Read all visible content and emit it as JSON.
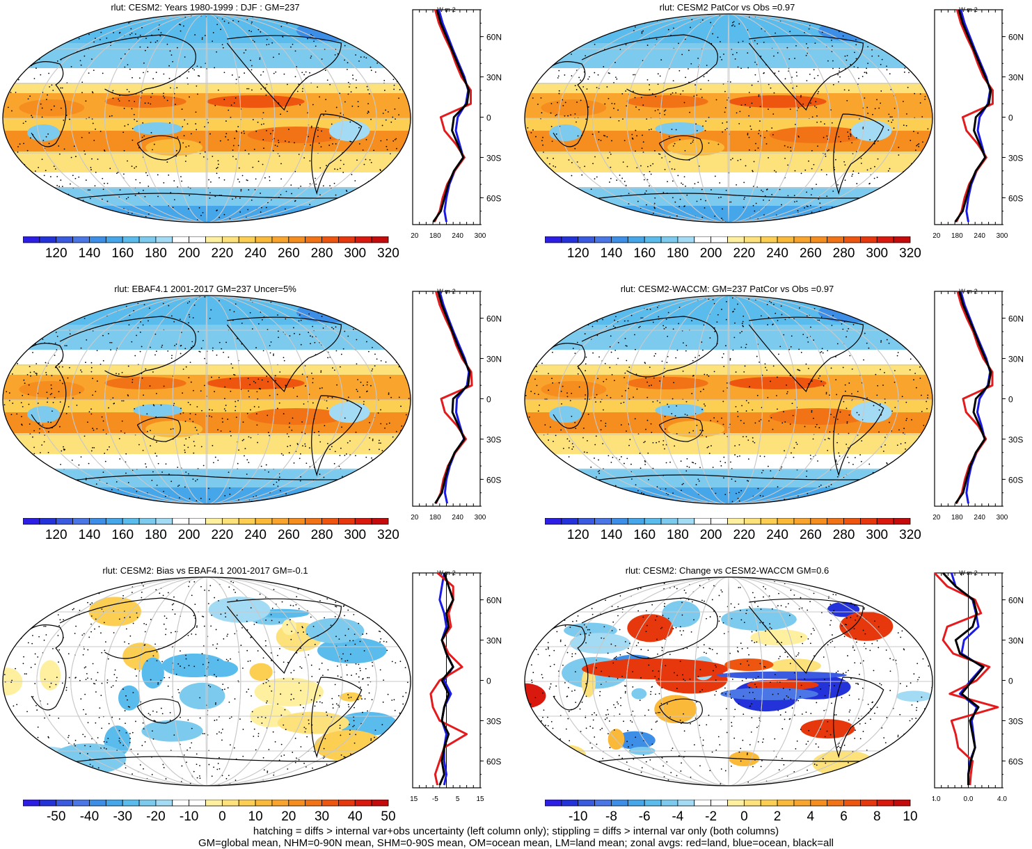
{
  "footer": {
    "line1": "hatching = diffs > internal var+obs uncertainty (left column only); stippling = diffs > internal var only (both columns)",
    "line2": "GM=global mean, NHM=0-90N mean, SHM=0-90S mean, OM=ocean mean, LM=land mean; zonal avgs: red=land, blue=ocean, black=all"
  },
  "colors": {
    "zonal_land": "#e41a1c",
    "zonal_ocean": "#1a1ae6",
    "zonal_all": "#000000",
    "scale": [
      "#2d1ee6",
      "#2433d9",
      "#3a5be0",
      "#4a76e6",
      "#3d8ee6",
      "#46a6ea",
      "#5abced",
      "#7ccbef",
      "#a3dbf4",
      "#ffffff",
      "#ffffff",
      "#fff0a0",
      "#fde17a",
      "#fccf52",
      "#fbb93a",
      "#f9a42d",
      "#f58d1f",
      "#f27315",
      "#ee560f",
      "#e6370d",
      "#d9190e",
      "#c40a0a"
    ]
  },
  "lat_labels": [
    "60N",
    "30N",
    "0",
    "30S",
    "60S"
  ],
  "units": "W m-2",
  "chart_data": [
    {
      "type": "heatmap",
      "id": "p1",
      "title": "rlut: CESM2: Years 1980-1999 : DJF : GM=237",
      "colorbar_ticks": [
        "120",
        "140",
        "160",
        "180",
        "200",
        "220",
        "240",
        "260",
        "280",
        "300",
        "320"
      ],
      "zonal_xticks": [
        "120",
        "180",
        "240",
        "300"
      ],
      "zonal_xlim": [
        120,
        300
      ],
      "zonal": {
        "lat": [
          -78,
          -70,
          -60,
          -50,
          -40,
          -30,
          -20,
          -10,
          0,
          10,
          20,
          30,
          40,
          50,
          60,
          70,
          80
        ],
        "all": [
          175,
          195,
          205,
          215,
          230,
          255,
          240,
          225,
          230,
          265,
          270,
          255,
          240,
          225,
          210,
          195,
          185
        ],
        "land": [
          178,
          192,
          200,
          212,
          232,
          258,
          235,
          205,
          195,
          275,
          275,
          250,
          235,
          222,
          205,
          190,
          180
        ],
        "ocean": [
          210,
          205,
          210,
          218,
          232,
          255,
          245,
          235,
          240,
          262,
          268,
          258,
          243,
          228,
          214,
          200,
          190
        ]
      }
    },
    {
      "type": "heatmap",
      "id": "p2",
      "title": "rlut: CESM2 PatCor vs Obs =0.97",
      "colorbar_ticks": [
        "120",
        "140",
        "160",
        "180",
        "200",
        "220",
        "240",
        "260",
        "280",
        "300",
        "320"
      ],
      "zonal_xticks": [
        "120",
        "180",
        "240",
        "300"
      ],
      "zonal_xlim": [
        120,
        300
      ],
      "zonal": {
        "lat": [
          -78,
          -70,
          -60,
          -50,
          -40,
          -30,
          -20,
          -10,
          0,
          10,
          20,
          30,
          40,
          50,
          60,
          70,
          80
        ],
        "all": [
          175,
          195,
          205,
          215,
          230,
          255,
          240,
          225,
          230,
          265,
          270,
          255,
          240,
          225,
          210,
          195,
          185
        ],
        "land": [
          178,
          192,
          200,
          212,
          232,
          258,
          235,
          205,
          195,
          275,
          275,
          250,
          235,
          222,
          205,
          190,
          180
        ],
        "ocean": [
          210,
          205,
          210,
          218,
          232,
          255,
          245,
          235,
          240,
          262,
          268,
          258,
          243,
          228,
          214,
          200,
          190
        ]
      }
    },
    {
      "type": "heatmap",
      "id": "p3",
      "title": "rlut: EBAF4.1 2001-2017 GM=237 Uncer=5%",
      "colorbar_ticks": [
        "120",
        "140",
        "160",
        "180",
        "200",
        "220",
        "240",
        "260",
        "280",
        "300",
        "320"
      ],
      "zonal_xticks": [
        "120",
        "180",
        "240",
        "300"
      ],
      "zonal_xlim": [
        120,
        300
      ],
      "zonal": {
        "lat": [
          -78,
          -70,
          -60,
          -50,
          -40,
          -30,
          -20,
          -10,
          0,
          10,
          20,
          30,
          40,
          50,
          60,
          70,
          80
        ],
        "all": [
          180,
          198,
          206,
          216,
          232,
          258,
          242,
          226,
          228,
          268,
          272,
          256,
          240,
          226,
          212,
          198,
          188
        ],
        "land": [
          182,
          195,
          202,
          214,
          234,
          262,
          238,
          206,
          196,
          278,
          276,
          252,
          236,
          224,
          207,
          192,
          182
        ],
        "ocean": [
          212,
          206,
          210,
          219,
          233,
          257,
          246,
          236,
          238,
          265,
          270,
          259,
          244,
          229,
          215,
          202,
          192
        ]
      }
    },
    {
      "type": "heatmap",
      "id": "p4",
      "title": "rlut: CESM2-WACCM: GM=237 PatCor vs Obs =0.97",
      "colorbar_ticks": [
        "120",
        "140",
        "160",
        "180",
        "200",
        "220",
        "240",
        "260",
        "280",
        "300",
        "320"
      ],
      "zonal_xticks": [
        "120",
        "180",
        "240",
        "300"
      ],
      "zonal_xlim": [
        120,
        300
      ],
      "zonal": {
        "lat": [
          -78,
          -70,
          -60,
          -50,
          -40,
          -30,
          -20,
          -10,
          0,
          10,
          20,
          30,
          40,
          50,
          60,
          70,
          80
        ],
        "all": [
          176,
          196,
          205,
          215,
          230,
          254,
          240,
          224,
          230,
          264,
          270,
          255,
          240,
          226,
          211,
          196,
          186
        ],
        "land": [
          178,
          193,
          201,
          212,
          232,
          257,
          236,
          204,
          196,
          274,
          274,
          250,
          235,
          223,
          206,
          191,
          181
        ],
        "ocean": [
          210,
          205,
          210,
          218,
          232,
          254,
          245,
          234,
          240,
          262,
          268,
          258,
          243,
          228,
          214,
          200,
          190
        ]
      }
    },
    {
      "type": "heatmap",
      "id": "p5",
      "title": "rlut: CESM2: Bias vs EBAF4.1 2001-2017 GM=-0.1",
      "colorbar_ticks": [
        "-50",
        "-40",
        "-30",
        "-20",
        "-10",
        "0",
        "10",
        "20",
        "30",
        "40",
        "50"
      ],
      "zonal_xticks": [
        "-15",
        "-5",
        "5",
        "15"
      ],
      "zonal_xlim": [
        -15,
        15
      ],
      "zonal_zero_line": true,
      "zonal": {
        "lat": [
          -78,
          -70,
          -60,
          -50,
          -40,
          -30,
          -20,
          -10,
          0,
          10,
          20,
          30,
          40,
          50,
          60,
          70,
          80
        ],
        "all": [
          -3,
          -1,
          -2,
          -1,
          1,
          -2,
          -1,
          1,
          -2,
          3,
          0,
          -2,
          1,
          0,
          3,
          1,
          -1
        ],
        "land": [
          -4,
          -5,
          -3,
          -1,
          9,
          -3,
          -6,
          -7,
          -3,
          7,
          1,
          -2,
          2,
          1,
          3,
          3,
          -4
        ],
        "ocean": [
          -1,
          0,
          -1,
          -1,
          0,
          -2,
          -1,
          2,
          -1,
          3,
          0,
          -2,
          0,
          -1,
          -3,
          -2,
          -1
        ]
      }
    },
    {
      "type": "heatmap",
      "id": "p6",
      "title": "rlut: CESM2: Change vs CESM2-WACCM GM=0.6",
      "colorbar_ticks": [
        "-10",
        "-8",
        "-6",
        "-4",
        "-2",
        "0",
        "2",
        "4",
        "6",
        "8",
        "10"
      ],
      "zonal_xticks": [
        "-4.0",
        "0.0",
        "4.0"
      ],
      "zonal_xlim": [
        -4,
        4
      ],
      "zonal_zero_line": true,
      "zonal": {
        "lat": [
          -78,
          -70,
          -60,
          -50,
          -40,
          -30,
          -20,
          -10,
          0,
          10,
          20,
          30,
          40,
          50,
          60,
          70,
          80
        ],
        "all": [
          0,
          0,
          0.3,
          0.8,
          0.5,
          0.2,
          1.2,
          -0.8,
          0.5,
          1.8,
          -1,
          -1.5,
          0.5,
          1,
          0.6,
          -1.5,
          -3
        ],
        "land": [
          0.2,
          0.3,
          0.5,
          -1.2,
          -1.5,
          -2,
          3.5,
          -2.2,
          1,
          2.5,
          -1.8,
          -3,
          -2.5,
          1.5,
          0.8,
          -2.5,
          -4
        ],
        "ocean": [
          0,
          0,
          0.2,
          0.8,
          0.6,
          0.4,
          1,
          -1,
          0.3,
          1.7,
          -0.8,
          -0.5,
          1.2,
          0.9,
          0.5,
          -1.5,
          -2
        ]
      }
    }
  ]
}
